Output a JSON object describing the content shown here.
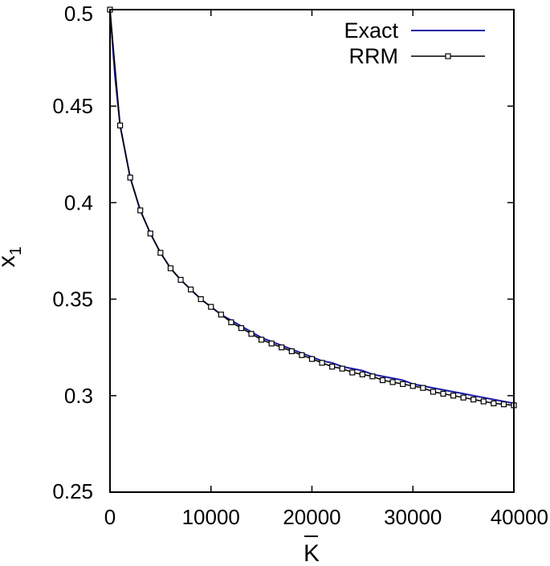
{
  "chart_data": {
    "type": "line",
    "xlabel": "K",
    "ylabel": "x",
    "ylabel_subscript": "1",
    "xlim": [
      0,
      40000
    ],
    "ylim": [
      0.25,
      0.5
    ],
    "xticks": [
      0,
      10000,
      20000,
      30000,
      40000
    ],
    "xtick_labels": [
      "0",
      "10000",
      "20000",
      "30000",
      "40000"
    ],
    "yticks": [
      0.25,
      0.3,
      0.35,
      0.4,
      0.45,
      0.5
    ],
    "ytick_labels": [
      "0.25",
      "0.3",
      "0.35",
      "0.4",
      "0.45",
      "0.5"
    ],
    "grid": false,
    "legend": "top-right",
    "series": [
      {
        "name": "Exact",
        "color": "#1a1aa6",
        "marker": "none",
        "x": [
          0,
          500,
          1000,
          2000,
          3000,
          4000,
          5000,
          6000,
          7000,
          8000,
          9000,
          10000,
          11000,
          12000,
          13000,
          14000,
          15000,
          16000,
          17000,
          18000,
          19000,
          20000,
          21000,
          22000,
          23000,
          24000,
          25000,
          26000,
          27000,
          28000,
          29000,
          30000,
          31000,
          32000,
          33000,
          34000,
          35000,
          36000,
          37000,
          38000,
          39000,
          40000
        ],
        "y": [
          0.5,
          0.465,
          0.44,
          0.413,
          0.396,
          0.384,
          0.374,
          0.366,
          0.36,
          0.355,
          0.35,
          0.346,
          0.342,
          0.339,
          0.336,
          0.333,
          0.33,
          0.328,
          0.326,
          0.324,
          0.322,
          0.32,
          0.318,
          0.317,
          0.315,
          0.314,
          0.313,
          0.311,
          0.31,
          0.309,
          0.308,
          0.306,
          0.305,
          0.304,
          0.303,
          0.302,
          0.301,
          0.3,
          0.299,
          0.298,
          0.297,
          0.296
        ]
      },
      {
        "name": "RRM",
        "color": "#000000",
        "marker": "square",
        "x": [
          0,
          1000,
          2000,
          3000,
          4000,
          5000,
          6000,
          7000,
          8000,
          9000,
          10000,
          11000,
          12000,
          13000,
          14000,
          15000,
          16000,
          17000,
          18000,
          19000,
          20000,
          21000,
          22000,
          23000,
          24000,
          25000,
          26000,
          27000,
          28000,
          29000,
          30000,
          31000,
          32000,
          33000,
          34000,
          35000,
          36000,
          37000,
          38000,
          39000,
          40000
        ],
        "y": [
          0.5,
          0.44,
          0.413,
          0.396,
          0.384,
          0.374,
          0.366,
          0.36,
          0.355,
          0.35,
          0.346,
          0.342,
          0.338,
          0.335,
          0.332,
          0.329,
          0.327,
          0.325,
          0.323,
          0.321,
          0.319,
          0.317,
          0.315,
          0.314,
          0.312,
          0.311,
          0.31,
          0.308,
          0.307,
          0.306,
          0.305,
          0.304,
          0.302,
          0.301,
          0.3,
          0.299,
          0.298,
          0.297,
          0.296,
          0.2955,
          0.295
        ]
      }
    ]
  }
}
